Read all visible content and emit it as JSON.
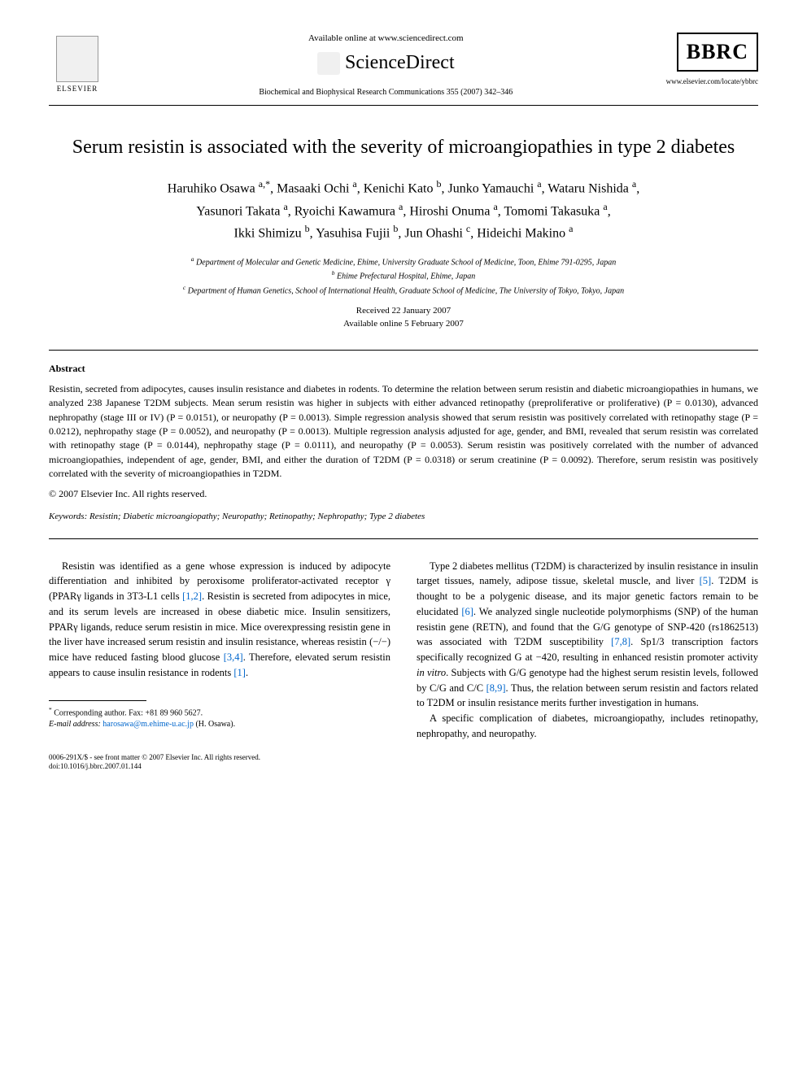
{
  "header": {
    "available_online": "Available online at www.sciencedirect.com",
    "sciencedirect": "ScienceDirect",
    "journal_ref": "Biochemical and Biophysical Research Communications 355 (2007) 342–346",
    "elsevier_label": "ELSEVIER",
    "bbrc_label": "BBRC",
    "journal_url": "www.elsevier.com/locate/ybbrc"
  },
  "title": "Serum resistin is associated with the severity of microangiopathies in type 2 diabetes",
  "authors_html": "Haruhiko Osawa <sup>a,*</sup>, Masaaki Ochi <sup>a</sup>, Kenichi Kato <sup>b</sup>, Junko Yamauchi <sup>a</sup>, Wataru Nishida <sup>a</sup>, Yasunori Takata <sup>a</sup>, Ryoichi Kawamura <sup>a</sup>, Hiroshi Onuma <sup>a</sup>, Tomomi Takasuka <sup>a</sup>, Ikki Shimizu <sup>b</sup>, Yasuhisa Fujii <sup>b</sup>, Jun Ohashi <sup>c</sup>, Hideichi Makino <sup>a</sup>",
  "affiliations": {
    "a": "Department of Molecular and Genetic Medicine, Ehime, University Graduate School of Medicine, Toon, Ehime 791-0295, Japan",
    "b": "Ehime Prefectural Hospital, Ehime, Japan",
    "c": "Department of Human Genetics, School of International Health, Graduate School of Medicine, The University of Tokyo, Tokyo, Japan"
  },
  "dates": {
    "received": "Received 22 January 2007",
    "online": "Available online 5 February 2007"
  },
  "abstract": {
    "heading": "Abstract",
    "body": "Resistin, secreted from adipocytes, causes insulin resistance and diabetes in rodents. To determine the relation between serum resistin and diabetic microangiopathies in humans, we analyzed 238 Japanese T2DM subjects. Mean serum resistin was higher in subjects with either advanced retinopathy (preproliferative or proliferative) (P = 0.0130), advanced nephropathy (stage III or IV) (P = 0.0151), or neuropathy (P = 0.0013). Simple regression analysis showed that serum resistin was positively correlated with retinopathy stage (P = 0.0212), nephropathy stage (P = 0.0052), and neuropathy (P = 0.0013). Multiple regression analysis adjusted for age, gender, and BMI, revealed that serum resistin was correlated with retinopathy stage (P = 0.0144), nephropathy stage (P = 0.0111), and neuropathy (P = 0.0053). Serum resistin was positively correlated with the number of advanced microangiopathies, independent of age, gender, BMI, and either the duration of T2DM (P = 0.0318) or serum creatinine (P = 0.0092). Therefore, serum resistin was positively correlated with the severity of microangiopathies in T2DM.",
    "copyright": "© 2007 Elsevier Inc. All rights reserved."
  },
  "keywords": {
    "label": "Keywords:",
    "list": "Resistin; Diabetic microangiopathy; Neuropathy; Retinopathy; Nephropathy; Type 2 diabetes"
  },
  "body": {
    "left_p1": "Resistin was identified as a gene whose expression is induced by adipocyte differentiation and inhibited by peroxisome proliferator-activated receptor γ (PPARγ ligands in 3T3-L1 cells [1,2]. Resistin is secreted from adipocytes in mice, and its serum levels are increased in obese diabetic mice. Insulin sensitizers, PPARγ ligands, reduce serum resistin in mice. Mice overexpressing resistin gene in the liver have increased serum resistin and insulin resistance, whereas resistin (−/−) mice have reduced fasting blood glucose [3,4]. Therefore, elevated serum resistin appears to cause insulin resistance in rodents [1].",
    "right_p1": "Type 2 diabetes mellitus (T2DM) is characterized by insulin resistance in insulin target tissues, namely, adipose tissue, skeletal muscle, and liver [5]. T2DM is thought to be a polygenic disease, and its major genetic factors remain to be elucidated [6]. We analyzed single nucleotide polymorphisms (SNP) of the human resistin gene (RETN), and found that the G/G genotype of SNP-420 (rs1862513) was associated with T2DM susceptibility [7,8]. Sp1/3 transcription factors specifically recognized G at −420, resulting in enhanced resistin promoter activity in vitro. Subjects with G/G genotype had the highest serum resistin levels, followed by C/G and C/C [8,9]. Thus, the relation between serum resistin and factors related to T2DM or insulin resistance merits further investigation in humans.",
    "right_p2": "A specific complication of diabetes, microangiopathy, includes retinopathy, nephropathy, and neuropathy."
  },
  "footnotes": {
    "corresponding": "Corresponding author. Fax: +81 89 960 5627.",
    "email_label": "E-mail address:",
    "email": "harosawa@m.ehime-u.ac.jp",
    "email_attr": "(H. Osawa)."
  },
  "footer": {
    "line1": "0006-291X/$ - see front matter © 2007 Elsevier Inc. All rights reserved.",
    "line2": "doi:10.1016/j.bbrc.2007.01.144"
  },
  "colors": {
    "link": "#0066cc",
    "text": "#000000",
    "background": "#ffffff"
  }
}
